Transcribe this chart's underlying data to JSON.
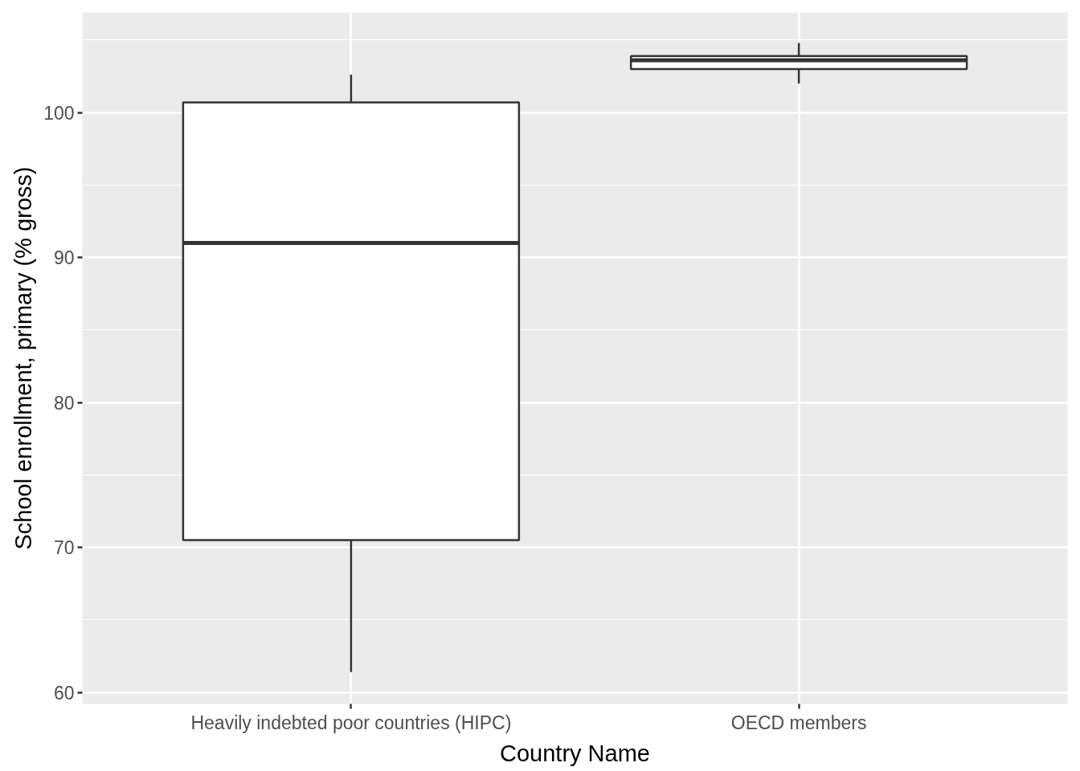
{
  "chart_data": {
    "type": "box",
    "categories": [
      "Heavily indebted poor countries (HIPC)",
      "OECD members"
    ],
    "xlabel": "Country Name",
    "ylabel": "School enrollment, primary (% gross)",
    "boxes": [
      {
        "low": 61.4,
        "q1": 70.5,
        "median": 91.0,
        "q3": 100.7,
        "high": 102.6
      },
      {
        "low": 102.0,
        "q1": 103.0,
        "median": 103.6,
        "q3": 103.9,
        "high": 104.8
      }
    ],
    "color": "#ffffff",
    "ylim": [
      59.2,
      106.9
    ],
    "yticks": [
      60,
      70,
      80,
      90,
      100
    ],
    "grid": true
  }
}
